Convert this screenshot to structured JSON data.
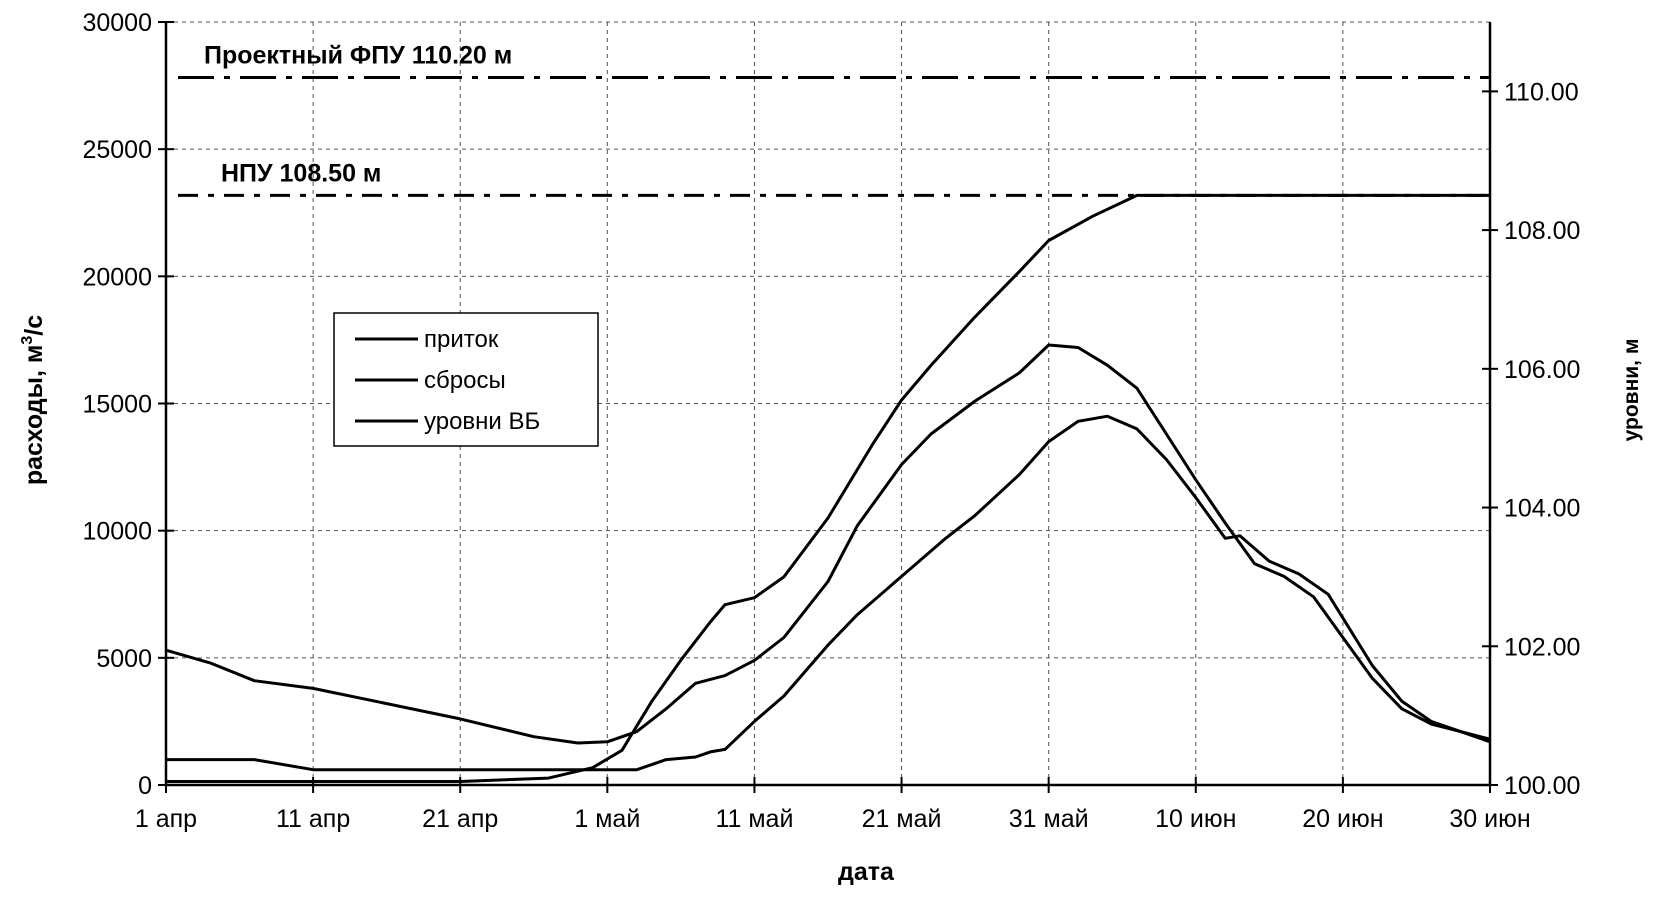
{
  "chart_data": {
    "type": "line",
    "title": "",
    "xlabel": "дата",
    "ylabel_parts": [
      "расходы, м",
      "3",
      "/с"
    ],
    "y2label": "уровни, м",
    "x_start": "1 апр",
    "xlim": [
      0,
      90
    ],
    "ylim": [
      0,
      30000
    ],
    "y2lim": [
      100,
      111
    ],
    "grid": true,
    "legend_position": "left-center",
    "x_ticks": [
      {
        "x": 0,
        "label": "1 апр"
      },
      {
        "x": 10,
        "label": "11 апр"
      },
      {
        "x": 20,
        "label": "21 апр"
      },
      {
        "x": 30,
        "label": "1 май"
      },
      {
        "x": 40,
        "label": "11 май"
      },
      {
        "x": 50,
        "label": "21 май"
      },
      {
        "x": 60,
        "label": "31 май"
      },
      {
        "x": 70,
        "label": "10 июн"
      },
      {
        "x": 80,
        "label": "20 июн"
      },
      {
        "x": 90,
        "label": "30 июн"
      }
    ],
    "y_ticks": [
      {
        "v": 0,
        "label": "0"
      },
      {
        "v": 5000,
        "label": "5000"
      },
      {
        "v": 10000,
        "label": "10000"
      },
      {
        "v": 15000,
        "label": "15000"
      },
      {
        "v": 20000,
        "label": "20000"
      },
      {
        "v": 25000,
        "label": "25000"
      },
      {
        "v": 30000,
        "label": "30000"
      }
    ],
    "y2_ticks": [
      {
        "v": 100,
        "label": "100.00"
      },
      {
        "v": 102,
        "label": "102.00"
      },
      {
        "v": 104,
        "label": "104.00"
      },
      {
        "v": 106,
        "label": "106.00"
      },
      {
        "v": 108,
        "label": "108.00"
      },
      {
        "v": 110,
        "label": "110.00"
      }
    ],
    "reference_lines": [
      {
        "label": "Проектный ФПУ 110.20 м",
        "level": 110.2
      },
      {
        "label": "НПУ 108.50 м",
        "level": 108.5
      }
    ],
    "series": [
      {
        "name": "приток",
        "axis": "left",
        "points": [
          [
            0,
            1000
          ],
          [
            3,
            1000
          ],
          [
            6,
            1000
          ],
          [
            10,
            600
          ],
          [
            20,
            600
          ],
          [
            25,
            600
          ],
          [
            30,
            600
          ],
          [
            32,
            600
          ],
          [
            34,
            1000
          ],
          [
            36,
            1100
          ],
          [
            37,
            1300
          ],
          [
            38,
            1400
          ],
          [
            40,
            2500
          ],
          [
            42,
            3500
          ],
          [
            45,
            5500
          ],
          [
            47,
            6700
          ],
          [
            50,
            8200
          ],
          [
            53,
            9700
          ],
          [
            55,
            10600
          ],
          [
            58,
            12200
          ],
          [
            60,
            13500
          ],
          [
            62,
            14300
          ],
          [
            64,
            14500
          ],
          [
            66,
            14000
          ],
          [
            68,
            12800
          ],
          [
            70,
            11300
          ],
          [
            72,
            9700
          ],
          [
            73,
            9800
          ],
          [
            75,
            8800
          ],
          [
            77,
            8300
          ],
          [
            79,
            7500
          ],
          [
            82,
            4700
          ],
          [
            84,
            3300
          ],
          [
            86,
            2500
          ],
          [
            88,
            2100
          ],
          [
            90,
            1800
          ]
        ]
      },
      {
        "name": "сбросы",
        "axis": "left",
        "points": [
          [
            0,
            5300
          ],
          [
            3,
            4800
          ],
          [
            6,
            4100
          ],
          [
            10,
            3800
          ],
          [
            15,
            3200
          ],
          [
            20,
            2600
          ],
          [
            25,
            1900
          ],
          [
            28,
            1650
          ],
          [
            30,
            1700
          ],
          [
            32,
            2100
          ],
          [
            34,
            3000
          ],
          [
            35,
            3500
          ],
          [
            36,
            4000
          ],
          [
            38,
            4300
          ],
          [
            40,
            4900
          ],
          [
            42,
            5800
          ],
          [
            45,
            8000
          ],
          [
            47,
            10200
          ],
          [
            50,
            12600
          ],
          [
            52,
            13800
          ],
          [
            55,
            15100
          ],
          [
            58,
            16200
          ],
          [
            60,
            17300
          ],
          [
            62,
            17200
          ],
          [
            64,
            16500
          ],
          [
            66,
            15600
          ],
          [
            68,
            13800
          ],
          [
            70,
            12000
          ],
          [
            72,
            10300
          ],
          [
            74,
            8700
          ],
          [
            76,
            8200
          ],
          [
            78,
            7400
          ],
          [
            80,
            5800
          ],
          [
            82,
            4200
          ],
          [
            84,
            3000
          ],
          [
            86,
            2400
          ],
          [
            88,
            2100
          ],
          [
            90,
            1700
          ]
        ]
      },
      {
        "name": "уровни ВБ",
        "axis": "right",
        "points": [
          [
            0,
            100.05
          ],
          [
            10,
            100.05
          ],
          [
            20,
            100.05
          ],
          [
            26,
            100.1
          ],
          [
            29,
            100.25
          ],
          [
            31,
            100.5
          ],
          [
            33,
            101.2
          ],
          [
            35,
            101.8
          ],
          [
            37,
            102.35
          ],
          [
            38,
            102.6
          ],
          [
            40,
            102.7
          ],
          [
            42,
            103.0
          ],
          [
            45,
            103.85
          ],
          [
            48,
            104.9
          ],
          [
            50,
            105.55
          ],
          [
            52,
            106.05
          ],
          [
            55,
            106.75
          ],
          [
            58,
            107.4
          ],
          [
            60,
            107.85
          ],
          [
            63,
            108.2
          ],
          [
            66,
            108.5
          ],
          [
            70,
            108.5
          ],
          [
            75,
            108.5
          ],
          [
            80,
            108.5
          ],
          [
            85,
            108.5
          ],
          [
            90,
            108.5
          ]
        ]
      }
    ]
  }
}
